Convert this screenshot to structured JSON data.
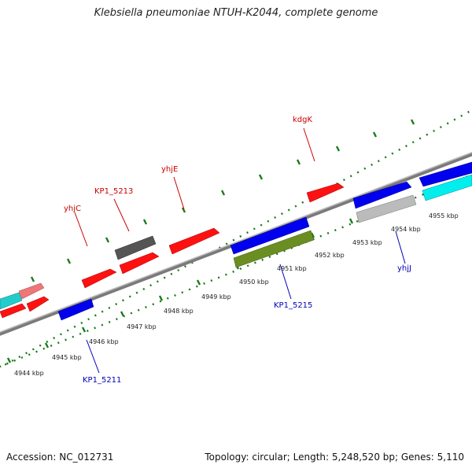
{
  "title": "Klebsiella pneumoniae NTUH-K2044, complete genome",
  "accession": "Accession: NC_012731",
  "topology": "Topology: circular; Length: 5,248,520 bp; Genes: 5,110",
  "colors": {
    "forward_gene": "#ff0000",
    "reverse_gene": "#0000ee",
    "forward_label": "#cc0000",
    "reverse_label": "#0000bb",
    "tick": "#1a7a1a",
    "backbone": "#888888"
  },
  "scale_labels": [
    "4944 kbp",
    "4945 kbp",
    "4946 kbp",
    "4947 kbp",
    "4948 kbp",
    "4949 kbp",
    "4950 kbp",
    "4951 kbp",
    "4952 kbp",
    "4953 kbp",
    "4954 kbp",
    "4955 kbp"
  ],
  "gene_labels": {
    "kdgK": "kdgK",
    "yhjE": "yhjE",
    "KP1_5213": "KP1_5213",
    "yhjC": "yhjC",
    "KP1_5215": "KP1_5215",
    "yhjJ": "yhjJ",
    "KP1_5211": "KP1_5211"
  }
}
